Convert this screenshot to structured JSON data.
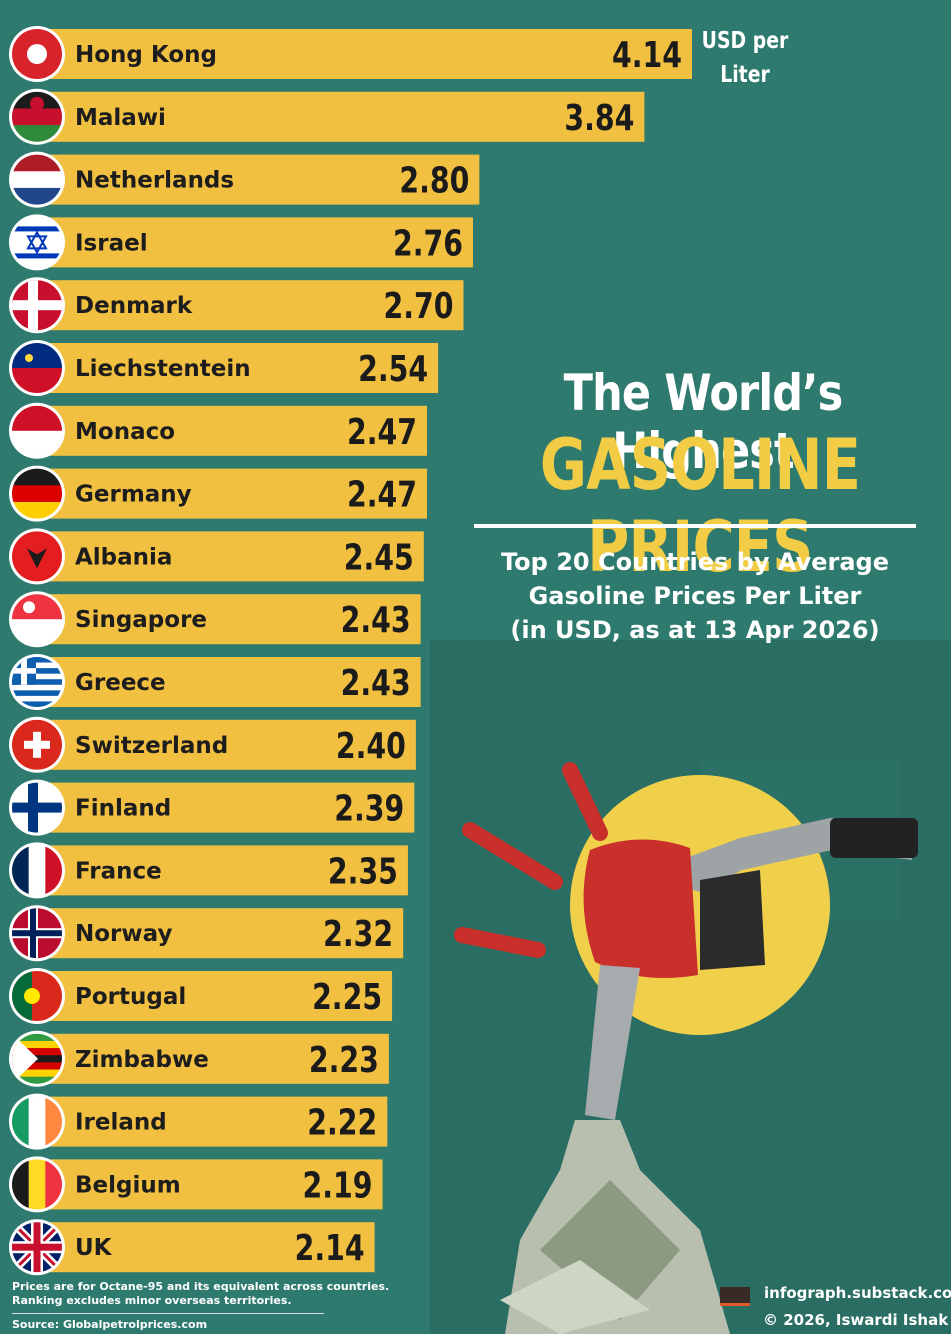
{
  "unit_label": [
    "USD per",
    "Liter"
  ],
  "title_line1": "The World’s Highest",
  "title_line2": "GASOLINE PRICES",
  "subtitle_lines": [
    "Top 20 Countries by Average",
    "Gasoline Prices Per Liter",
    "(in USD, as at 13 Apr 2026)"
  ],
  "notes": [
    "Prices are for Octane-95 and its equivalent across countries.",
    "Ranking excludes minor overseas territories."
  ],
  "source": "Source: Globalpetrolprices.com",
  "brand_site": "infograph.substack.com",
  "brand_copyright": "© 2026, Iswardi Ishak",
  "colors": {
    "background": "#2f7a6e",
    "bar": "#f2c041",
    "title_accent": "#f2cc44",
    "sun": "#f0d04a",
    "pump": "#c9302c"
  },
  "flag_icons": [
    "hong-kong-flag-icon",
    "malawi-flag-icon",
    "netherlands-flag-icon",
    "israel-flag-icon",
    "denmark-flag-icon",
    "liechtenstein-flag-icon",
    "monaco-flag-icon",
    "germany-flag-icon",
    "albania-flag-icon",
    "singapore-flag-icon",
    "greece-flag-icon",
    "switzerland-flag-icon",
    "finland-flag-icon",
    "france-flag-icon",
    "norway-flag-icon",
    "portugal-flag-icon",
    "zimbabwe-flag-icon",
    "ireland-flag-icon",
    "belgium-flag-icon",
    "uk-flag-icon"
  ],
  "chart_data": {
    "type": "bar",
    "orientation": "horizontal",
    "categories": [
      "Hong Kong",
      "Malawi",
      "Netherlands",
      "Israel",
      "Denmark",
      "Liechstentein",
      "Monaco",
      "Germany",
      "Albania",
      "Singapore",
      "Greece",
      "Switzerland",
      "Finland",
      "France",
      "Norway",
      "Portugal",
      "Zimbabwe",
      "Ireland",
      "Belgium",
      "UK"
    ],
    "values": [
      4.14,
      3.84,
      2.8,
      2.76,
      2.7,
      2.54,
      2.47,
      2.47,
      2.45,
      2.43,
      2.43,
      2.4,
      2.39,
      2.35,
      2.32,
      2.25,
      2.23,
      2.22,
      2.19,
      2.14
    ],
    "value_labels": [
      "4.14",
      "3.84",
      "2.80",
      "2.76",
      "2.70",
      "2.54",
      "2.47",
      "2.47",
      "2.45",
      "2.43",
      "2.43",
      "2.40",
      "2.39",
      "2.35",
      "2.32",
      "2.25",
      "2.23",
      "2.22",
      "2.19",
      "2.14"
    ],
    "title": "The World’s Highest GASOLINE PRICES",
    "xlabel": "",
    "ylabel": "",
    "xlim": [
      0,
      4.14
    ],
    "grid": false,
    "legend": "none"
  }
}
